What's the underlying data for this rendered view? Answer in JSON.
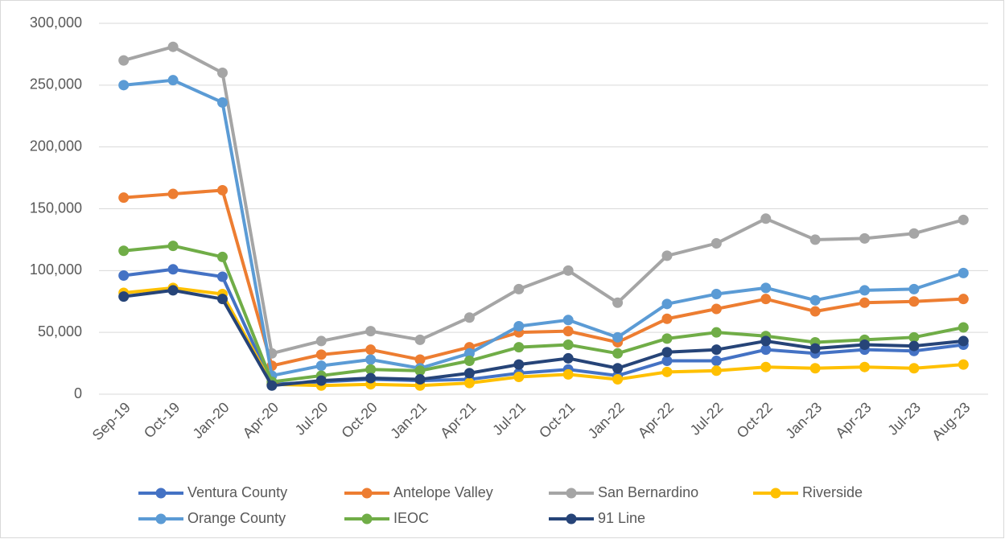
{
  "chart_data": {
    "type": "line",
    "categories": [
      "Sep-19",
      "Oct-19",
      "Jan-20",
      "Apr-20",
      "Jul-20",
      "Oct-20",
      "Jan-21",
      "Apr-21",
      "Jul-21",
      "Oct-21",
      "Jan-22",
      "Apr-22",
      "Jul-22",
      "Oct-22",
      "Jan-23",
      "Apr-23",
      "Jul-23",
      "Aug-23"
    ],
    "series": [
      {
        "name": "Ventura County",
        "color": "#4472c4",
        "values": [
          96000,
          101000,
          95000,
          8000,
          10000,
          12000,
          11000,
          12000,
          17000,
          20000,
          15000,
          27000,
          27000,
          36000,
          33000,
          36000,
          35000,
          40000
        ]
      },
      {
        "name": "Antelope Valley",
        "color": "#ed7d31",
        "values": [
          159000,
          162000,
          165000,
          23000,
          32000,
          36000,
          28000,
          38000,
          50000,
          51000,
          42000,
          61000,
          69000,
          77000,
          67000,
          74000,
          75000,
          77000
        ]
      },
      {
        "name": "San Bernardino",
        "color": "#a5a5a5",
        "values": [
          270000,
          281000,
          260000,
          33000,
          43000,
          51000,
          44000,
          62000,
          85000,
          100000,
          74000,
          112000,
          122000,
          142000,
          125000,
          126000,
          130000,
          141000
        ]
      },
      {
        "name": "Riverside",
        "color": "#ffc000",
        "values": [
          82000,
          86000,
          81000,
          8000,
          7000,
          8000,
          7000,
          9000,
          14000,
          16000,
          12000,
          18000,
          19000,
          22000,
          21000,
          22000,
          21000,
          24000
        ]
      },
      {
        "name": "Orange County",
        "color": "#5b9bd5",
        "values": [
          250000,
          254000,
          236000,
          15000,
          23000,
          28000,
          21000,
          33000,
          55000,
          60000,
          46000,
          73000,
          81000,
          86000,
          76000,
          84000,
          85000,
          98000
        ]
      },
      {
        "name": "IEOC",
        "color": "#70ad47",
        "values": [
          116000,
          120000,
          111000,
          10000,
          15000,
          20000,
          19000,
          27000,
          38000,
          40000,
          33000,
          45000,
          50000,
          47000,
          42000,
          44000,
          46000,
          54000
        ]
      },
      {
        "name": "91 Line",
        "color": "#264478",
        "values": [
          79000,
          84000,
          77000,
          7000,
          11000,
          13000,
          12000,
          17000,
          24000,
          29000,
          21000,
          34000,
          36000,
          43000,
          37000,
          40000,
          39000,
          43000
        ]
      }
    ],
    "ylim": [
      0,
      300000
    ],
    "yticks": [
      0,
      {
        "value": 50000,
        "label": "50,000"
      },
      {
        "value": 100000,
        "label": "100,000"
      },
      {
        "value": 150000,
        "label": "150,000"
      },
      {
        "value": 200000,
        "label": "200,000"
      },
      {
        "value": 250000,
        "label": "250,000"
      },
      {
        "value": 300000,
        "label": "300,000"
      }
    ],
    "grid": true,
    "legend": "bottom"
  }
}
